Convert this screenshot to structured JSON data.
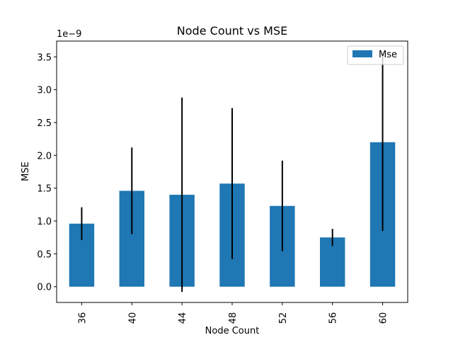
{
  "chart_data": {
    "type": "bar",
    "title": "Node Count vs MSE",
    "xlabel": "Node Count",
    "ylabel": "MSE",
    "y_scale_label": "1e−9",
    "categories": [
      "36",
      "40",
      "44",
      "48",
      "52",
      "56",
      "60"
    ],
    "series": [
      {
        "name": "Mse",
        "color": "#1f77b4",
        "values": [
          0.96,
          1.46,
          1.4,
          1.57,
          1.23,
          0.75,
          2.2
        ],
        "error": [
          0.25,
          0.66,
          1.48,
          1.15,
          0.69,
          0.13,
          1.35
        ]
      }
    ],
    "ylim": [
      -0.24,
      3.74
    ],
    "yticks": [
      "0.0",
      "0.5",
      "1.0",
      "1.5",
      "2.0",
      "2.5",
      "3.0",
      "3.5"
    ],
    "ytick_values": [
      0.0,
      0.5,
      1.0,
      1.5,
      2.0,
      2.5,
      3.0,
      3.5
    ],
    "grid": false,
    "legend_position": "top-right",
    "error_bar_color": "#000000"
  }
}
